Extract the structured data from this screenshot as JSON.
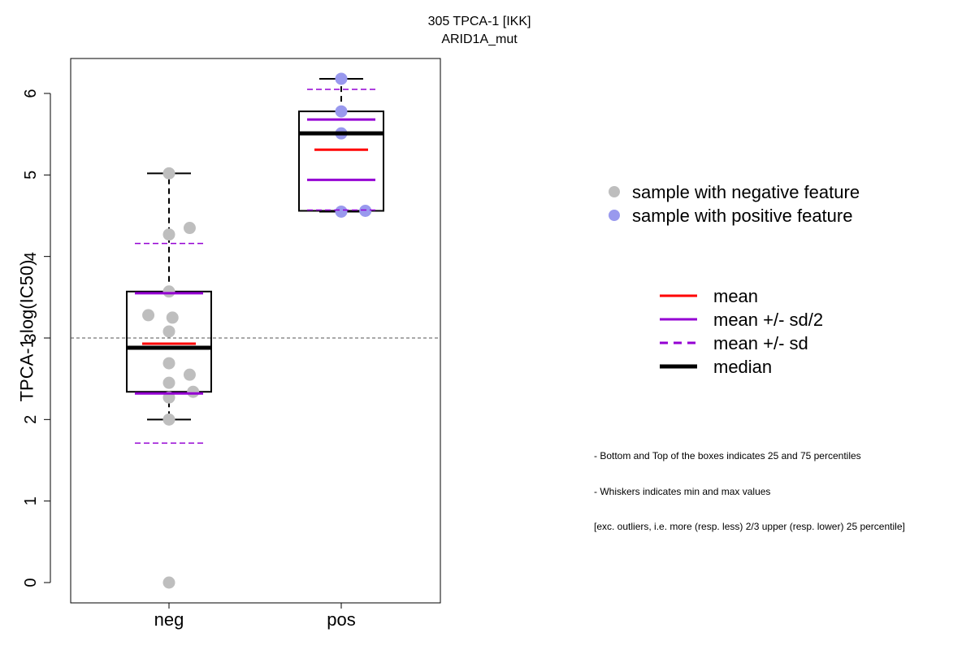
{
  "chart_data": {
    "type": "boxplot",
    "title": "305 TPCA-1 [IKK]",
    "subtitle": "ARID1A_mut",
    "ylabel": "TPCA-1 log(IC50)",
    "xlabel": "",
    "ylim": [
      -0.25,
      6.4
    ],
    "yticks": [
      0,
      1,
      2,
      3,
      4,
      5,
      6
    ],
    "reference_line": 3,
    "categories": [
      "neg",
      "pos"
    ],
    "groups": [
      {
        "name": "neg",
        "color": "#bebebe",
        "whisker_min": 2.0,
        "q1": 2.34,
        "median": 2.88,
        "q3": 3.57,
        "whisker_max": 5.02,
        "mean": 2.93,
        "mean_minus_half_sd": 2.32,
        "mean_plus_half_sd": 3.55,
        "mean_minus_sd": 1.71,
        "mean_plus_sd": 4.16,
        "points": [
          {
            "jitter": 0,
            "y": 5.02
          },
          {
            "jitter": 0.12,
            "y": 4.35
          },
          {
            "jitter": 0,
            "y": 4.27
          },
          {
            "jitter": 0,
            "y": 3.57
          },
          {
            "jitter": -0.12,
            "y": 3.28
          },
          {
            "jitter": 0.02,
            "y": 3.25
          },
          {
            "jitter": 0,
            "y": 3.08
          },
          {
            "jitter": 0,
            "y": 2.69
          },
          {
            "jitter": 0.12,
            "y": 2.55
          },
          {
            "jitter": 0,
            "y": 2.45
          },
          {
            "jitter": 0.14,
            "y": 2.34
          },
          {
            "jitter": 0,
            "y": 2.27
          },
          {
            "jitter": 0,
            "y": 2.0
          },
          {
            "jitter": 0,
            "y": 0.0
          }
        ]
      },
      {
        "name": "pos",
        "color": "#9999ee",
        "whisker_min": 4.55,
        "q1": 4.56,
        "median": 5.51,
        "q3": 5.78,
        "whisker_max": 6.18,
        "mean": 5.31,
        "mean_minus_half_sd": 4.94,
        "mean_plus_half_sd": 5.68,
        "mean_minus_sd": 4.57,
        "mean_plus_sd": 6.05,
        "points": [
          {
            "jitter": 0,
            "y": 6.18
          },
          {
            "jitter": 0,
            "y": 5.78
          },
          {
            "jitter": 0,
            "y": 5.51
          },
          {
            "jitter": 0,
            "y": 4.55
          },
          {
            "jitter": 0.14,
            "y": 4.56
          }
        ]
      }
    ],
    "legend": {
      "placement": "right",
      "points": [
        {
          "label": "sample with negative feature",
          "color": "#bebebe"
        },
        {
          "label": "sample with positive feature",
          "color": "#9999ee"
        }
      ],
      "lines": [
        {
          "label": "mean",
          "color": "#ff0000",
          "style": "solid"
        },
        {
          "label": "mean +/- sd/2",
          "color": "#9400d3",
          "style": "solid"
        },
        {
          "label": "mean +/- sd",
          "color": "#9400d3",
          "style": "dashed"
        },
        {
          "label": "median",
          "color": "#000000",
          "style": "solid-thick"
        }
      ]
    },
    "notes": [
      "- Bottom and Top of the boxes indicates 25 and 75 percentiles",
      "- Whiskers indicates min and max values",
      "[exc. outliers, i.e. more (resp. less) 2/3 upper (resp. lower) 25 percentile]"
    ]
  }
}
